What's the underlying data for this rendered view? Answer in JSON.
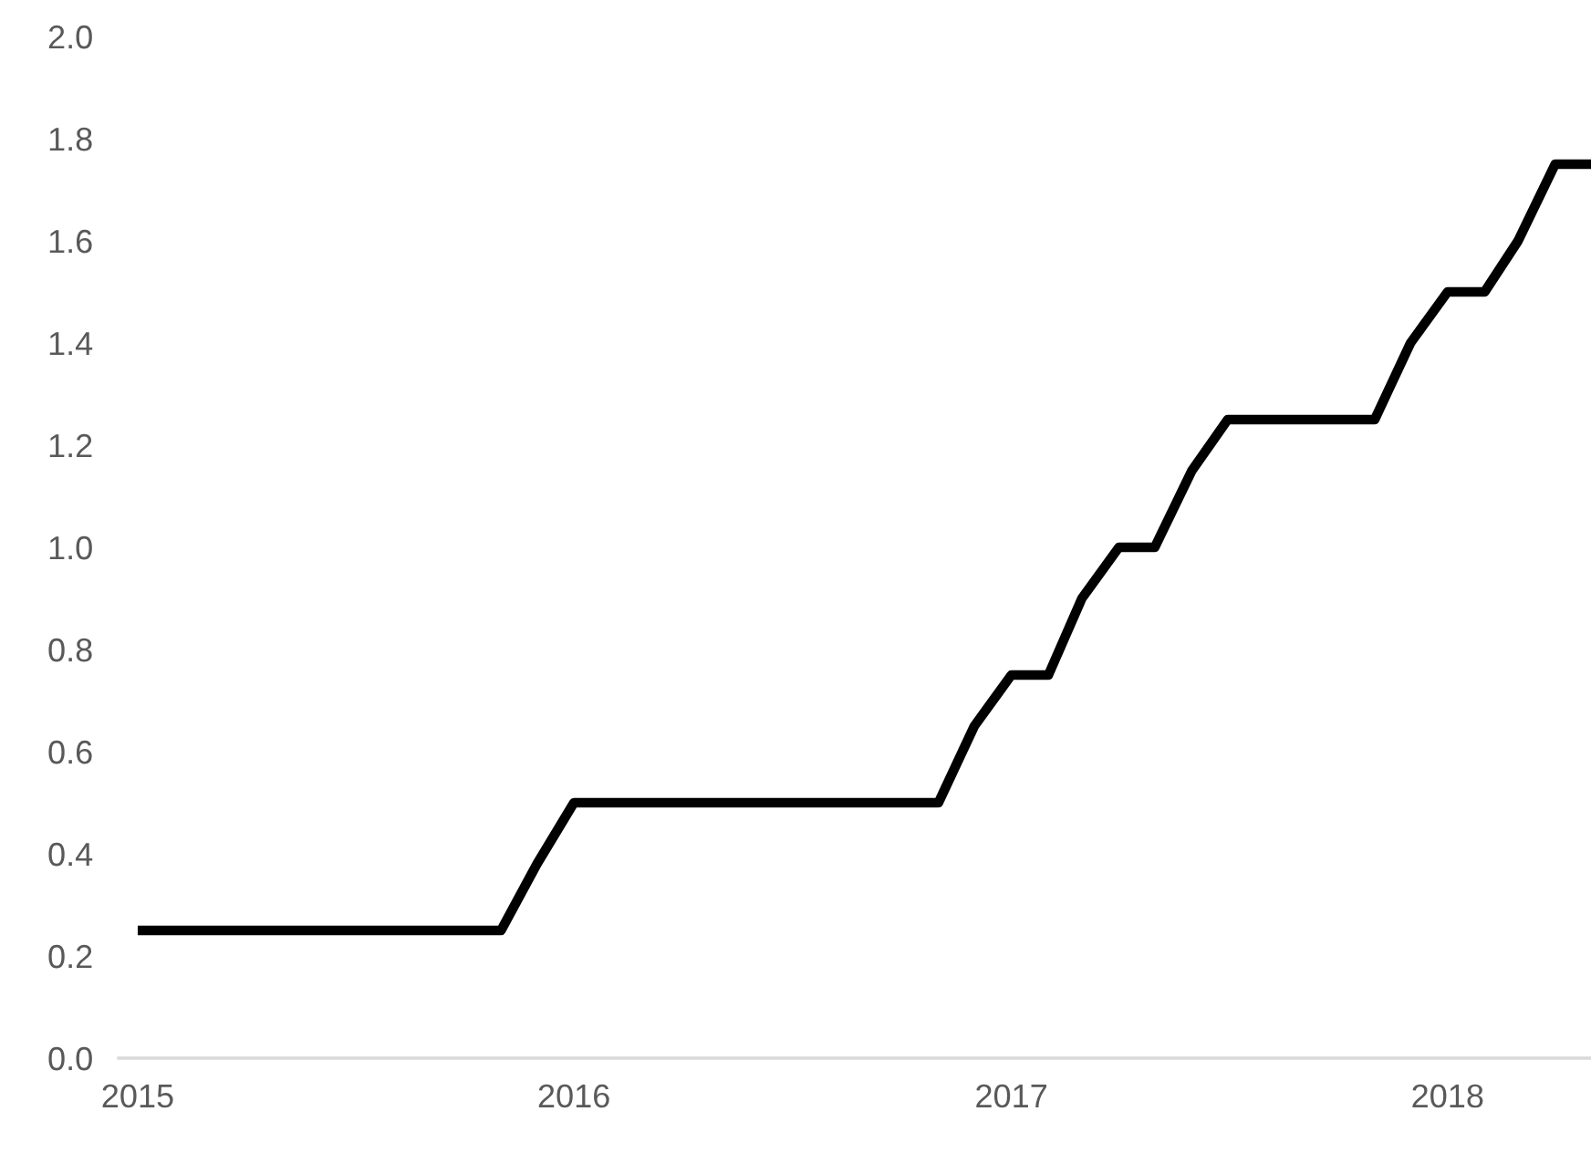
{
  "chart_data": {
    "type": "line",
    "x": [
      "2015-01",
      "2015-02",
      "2015-03",
      "2015-04",
      "2015-05",
      "2015-06",
      "2015-07",
      "2015-08",
      "2015-09",
      "2015-10",
      "2015-11",
      "2015-12",
      "2016-01",
      "2016-02",
      "2016-03",
      "2016-04",
      "2016-05",
      "2016-06",
      "2016-07",
      "2016-08",
      "2016-09",
      "2016-10",
      "2016-11",
      "2016-12",
      "2017-01",
      "2017-02",
      "2017-03",
      "2017-04",
      "2017-05",
      "2017-06",
      "2017-07",
      "2017-08",
      "2017-09",
      "2017-10",
      "2017-11",
      "2017-12",
      "2018-01",
      "2018-02",
      "2018-03",
      "2018-04",
      "2018-05"
    ],
    "series": [
      {
        "color": "#000000",
        "values": [
          0.25,
          0.25,
          0.25,
          0.25,
          0.25,
          0.25,
          0.25,
          0.25,
          0.25,
          0.25,
          0.25,
          0.38,
          0.5,
          0.5,
          0.5,
          0.5,
          0.5,
          0.5,
          0.5,
          0.5,
          0.5,
          0.5,
          0.5,
          0.65,
          0.75,
          0.75,
          0.9,
          1.0,
          1.0,
          1.15,
          1.25,
          1.25,
          1.25,
          1.25,
          1.25,
          1.4,
          1.5,
          1.5,
          1.6,
          1.75,
          1.75
        ]
      }
    ],
    "xlim": [
      "2014-12-16",
      "2018-05-01"
    ],
    "xticks": [
      {
        "value": "2015-01",
        "label": "2015"
      },
      {
        "value": "2016-01",
        "label": "2016"
      },
      {
        "value": "2017-01",
        "label": "2017"
      },
      {
        "value": "2018-01",
        "label": "2018"
      }
    ],
    "ylim": [
      0,
      2.0
    ],
    "yticks": [
      {
        "value": 0,
        "label": "0.0"
      },
      {
        "value": 0.2,
        "label": "0.2"
      },
      {
        "value": 0.4,
        "label": "0.4"
      },
      {
        "value": 0.6,
        "label": "0.6"
      },
      {
        "value": 0.8,
        "label": "0.8"
      },
      {
        "value": 1.0,
        "label": "1.0"
      },
      {
        "value": 1.2,
        "label": "1.2"
      },
      {
        "value": 1.4,
        "label": "1.4"
      },
      {
        "value": 1.6,
        "label": "1.6"
      },
      {
        "value": 1.8,
        "label": "1.8"
      },
      {
        "value": 2.0,
        "label": "2.0"
      }
    ],
    "marker": "none",
    "line_style": "solid",
    "grid": false
  }
}
